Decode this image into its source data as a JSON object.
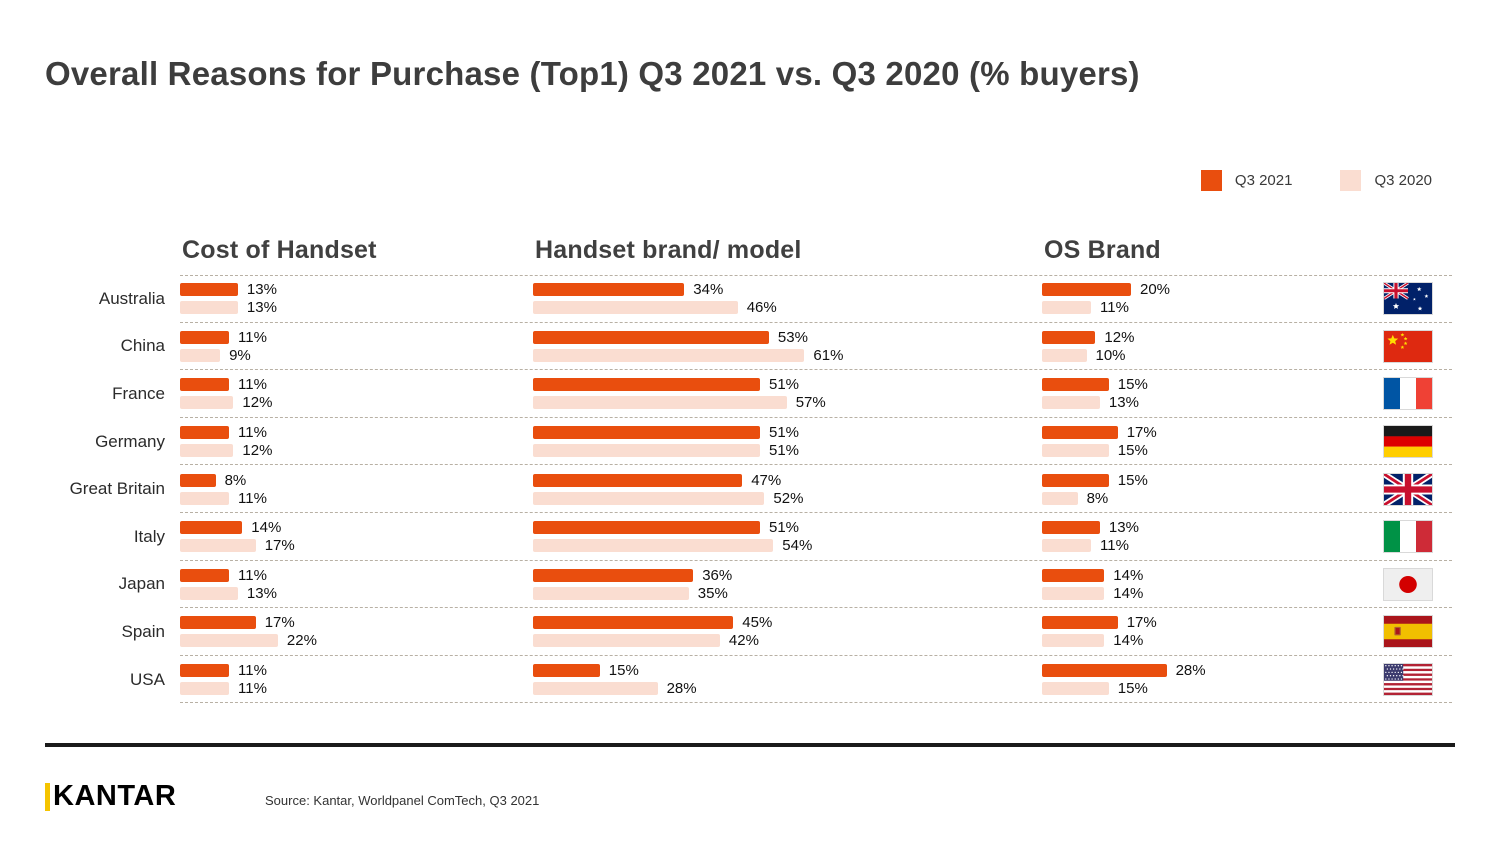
{
  "title": "Overall Reasons for Purchase (Top1) Q3 2021 vs. Q3 2020 (% buyers)",
  "legend": {
    "items": [
      {
        "label": "Q3 2021",
        "color": "#E94E0E"
      },
      {
        "label": "Q3 2020",
        "color": "#FADDD1"
      }
    ]
  },
  "footer": {
    "logo_text": "KANTAR",
    "source": "Source: Kantar, Worldpanel ComTech, Q3 2021"
  },
  "chart_data": {
    "type": "bar",
    "orientation": "horizontal",
    "value_unit": "%",
    "title": "Overall Reasons for Purchase (Top1) Q3 2021 vs. Q3 2020 (% buyers)",
    "legend_position": "top-right",
    "series_names": [
      "Q3 2021",
      "Q3 2020"
    ],
    "colors": {
      "q3_2021": "#E94E0E",
      "q3_2020": "#FADDD1"
    },
    "categories": [
      "Australia",
      "China",
      "France",
      "Germany",
      "Great Britain",
      "Italy",
      "Japan",
      "Spain",
      "USA"
    ],
    "flags": [
      "australia",
      "china",
      "france",
      "germany",
      "great-britain",
      "italy",
      "japan",
      "spain",
      "usa"
    ],
    "panels": [
      {
        "title": "Cost of Handset",
        "series": [
          {
            "name": "Q3 2021",
            "values": [
              13,
              11,
              11,
              11,
              8,
              14,
              11,
              17,
              11
            ]
          },
          {
            "name": "Q3 2020",
            "values": [
              13,
              9,
              12,
              12,
              11,
              17,
              13,
              22,
              11
            ]
          }
        ]
      },
      {
        "title": "Handset brand/ model",
        "series": [
          {
            "name": "Q3 2021",
            "values": [
              34,
              53,
              51,
              51,
              47,
              51,
              36,
              45,
              15
            ]
          },
          {
            "name": "Q3 2020",
            "values": [
              46,
              61,
              57,
              51,
              52,
              54,
              35,
              42,
              28
            ]
          }
        ]
      },
      {
        "title": "OS Brand",
        "series": [
          {
            "name": "Q3 2021",
            "values": [
              20,
              12,
              15,
              17,
              15,
              13,
              14,
              17,
              28
            ]
          },
          {
            "name": "Q3 2020",
            "values": [
              11,
              10,
              13,
              15,
              8,
              11,
              14,
              14,
              15
            ]
          }
        ]
      }
    ]
  }
}
